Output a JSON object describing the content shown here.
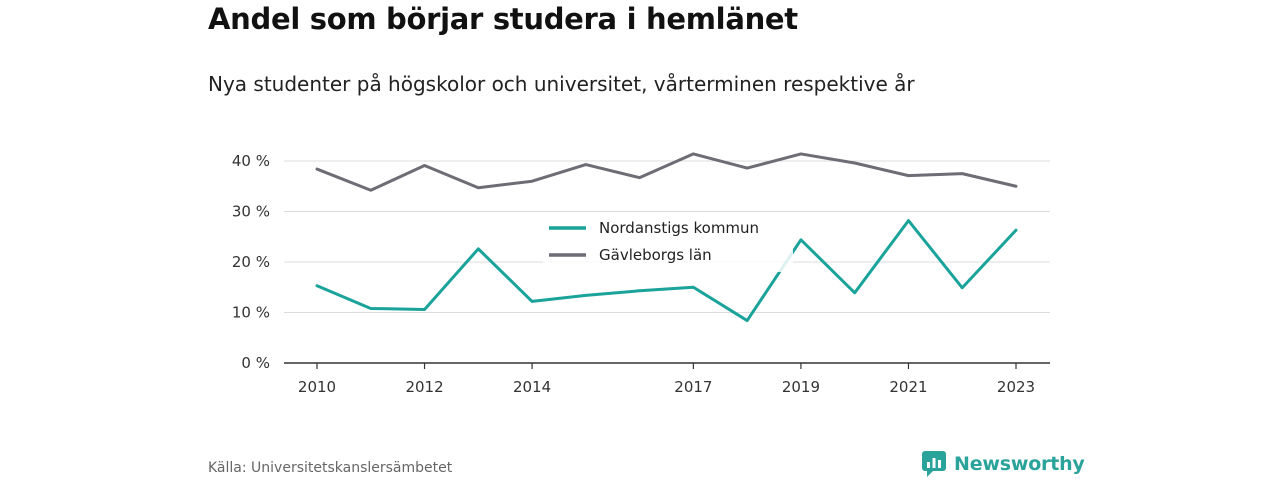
{
  "title": "Andel som börjar studera i hemlänet",
  "subtitle": "Nya studenter på högskolor och universitet, vårterminen respektive år",
  "source": "Källa: Universitetskanslersämbetet",
  "brand": {
    "name": "Newsworthy",
    "icon": "newsworthy-logo-icon"
  },
  "colors": {
    "series_1": "#1aa39a",
    "series_2": "#6e6c75",
    "grid": "#dcdcdc",
    "axis": "#333333",
    "brand": "#2aa39a"
  },
  "chart_data": {
    "type": "line",
    "x": [
      2010,
      2011,
      2012,
      2013,
      2014,
      2015,
      2016,
      2017,
      2018,
      2019,
      2020,
      2021,
      2022,
      2023
    ],
    "x_tick_labels": [
      "2010",
      "2012",
      "2014",
      "2017",
      "2019",
      "2021",
      "2023"
    ],
    "y_tick_labels": [
      "0 %",
      "10 %",
      "20 %",
      "30 %",
      "40 %"
    ],
    "ylim": [
      0,
      40
    ],
    "y_unit": "%",
    "grid": true,
    "legend_position": "center",
    "series": [
      {
        "name": "Nordanstigs kommun",
        "values": [
          15.3,
          10.8,
          10.6,
          22.6,
          12.2,
          13.4,
          14.3,
          15.0,
          8.4,
          24.4,
          13.9,
          28.2,
          14.9,
          26.3
        ]
      },
      {
        "name": "Gävleborgs län",
        "values": [
          38.4,
          34.2,
          39.1,
          34.7,
          36.0,
          39.3,
          36.7,
          41.4,
          38.6,
          41.4,
          39.6,
          37.1,
          37.5,
          35.0
        ]
      }
    ]
  }
}
